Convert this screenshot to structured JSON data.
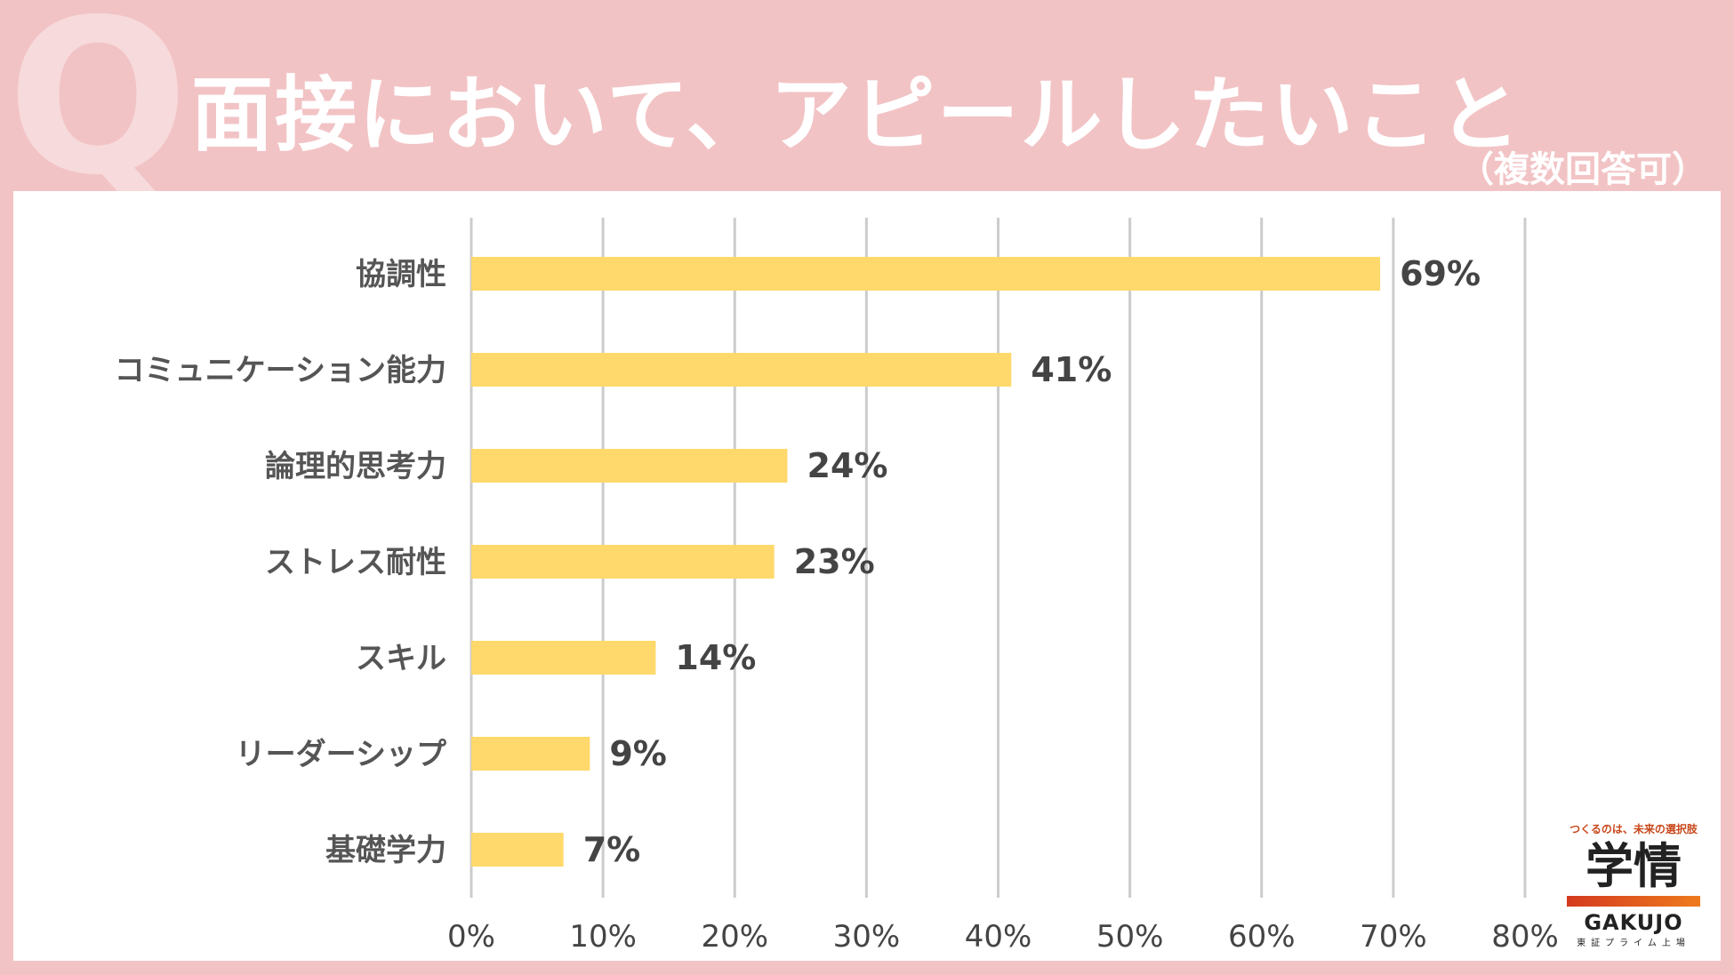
{
  "header": {
    "q_mark": "Q",
    "title": "面接において、アピールしたいこと",
    "subtitle": "（複数回答可）"
  },
  "colors": {
    "background": "#f2c3c5",
    "bar": "#ffd96b",
    "grid": "#cccccc"
  },
  "chart_data": {
    "type": "bar",
    "orientation": "horizontal",
    "title": "面接において、アピールしたいこと",
    "categories": [
      "協調性",
      "コミュニケーション能力",
      "論理的思考力",
      "ストレス耐性",
      "スキル",
      "リーダーシップ",
      "基礎学力"
    ],
    "values": [
      69,
      41,
      24,
      23,
      14,
      9,
      7
    ],
    "value_labels": [
      "69%",
      "41%",
      "24%",
      "23%",
      "14%",
      "9%",
      "7%"
    ],
    "xlim": [
      0,
      80
    ],
    "xticks": [
      0,
      10,
      20,
      30,
      40,
      50,
      60,
      70,
      80
    ],
    "xtick_labels": [
      "0%",
      "10%",
      "20%",
      "30%",
      "40%",
      "50%",
      "60%",
      "70%",
      "80%"
    ],
    "grid": true
  },
  "logo": {
    "tagline": "つくるのは、未来の選択肢",
    "kanji": "学情",
    "english": "GAKUJO",
    "sub": "東証プライム上場"
  }
}
